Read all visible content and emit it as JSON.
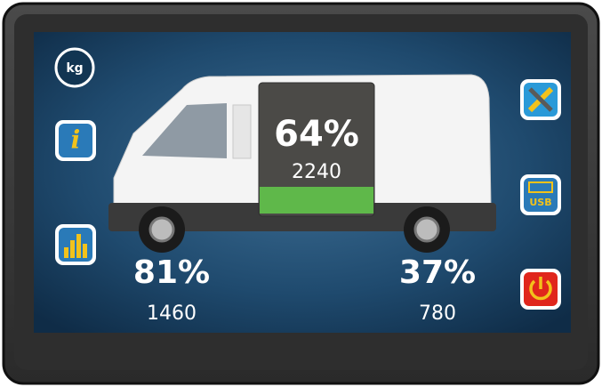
{
  "buttons": {
    "unit": "kg",
    "info": "i",
    "usb": "USB"
  },
  "total": {
    "percent": "64%",
    "weight": "2240"
  },
  "front_axle": {
    "percent": "81%",
    "weight": "1460"
  },
  "rear_axle": {
    "percent": "37%",
    "weight": "780"
  }
}
